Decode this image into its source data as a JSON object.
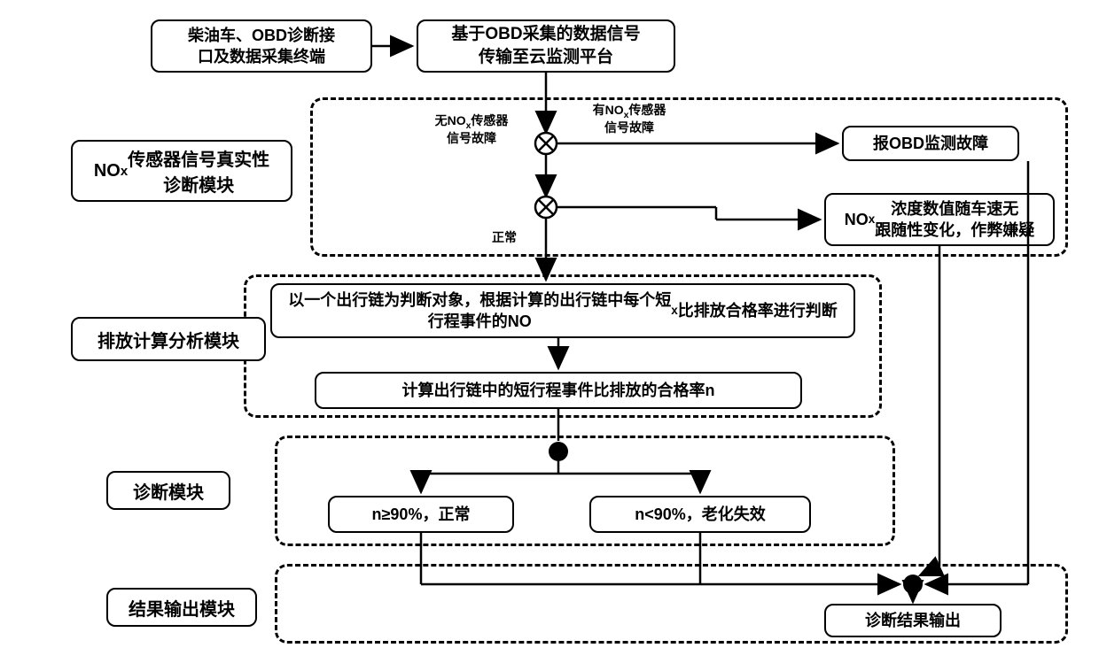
{
  "top": {
    "input_box": "柴油车、OBD诊断接\n口及数据采集终端",
    "cloud_box": "基于OBD采集的数据信号\n传输至云监测平台"
  },
  "module_labels": {
    "m1": "NOₓ传感器信号真实性\n诊断模块",
    "m2": "排放计算分析模块",
    "m3": "诊断模块",
    "m4": "结果输出模块"
  },
  "m1": {
    "no_fault": "无NOx传感器\n信号故障",
    "has_fault": "有NOx传感器\n信号故障",
    "normal": "正常",
    "obd_fault": "报OBD监测故障",
    "cheat": "NOₓ浓度数值随车速无\n跟随性变化，作弊嫌疑"
  },
  "m2": {
    "line1": "以一个出行链为判断对象，根据计算的出行链中每个短\n行程事件的NOₓ比排放合格率进行判断",
    "line2": "计算出行链中的短行程事件比排放的合格率n"
  },
  "m3": {
    "pass": "n≥90%，正常",
    "fail": "n<90%，老化失效"
  },
  "m4": {
    "output": "诊断结果输出"
  },
  "style": {
    "font_main": 18,
    "font_label": 20,
    "font_small": 14,
    "border_radius": 10,
    "stroke": "#000000",
    "fill": "#ffffff",
    "colors": {
      "black": "#000000",
      "white": "#ffffff"
    }
  }
}
